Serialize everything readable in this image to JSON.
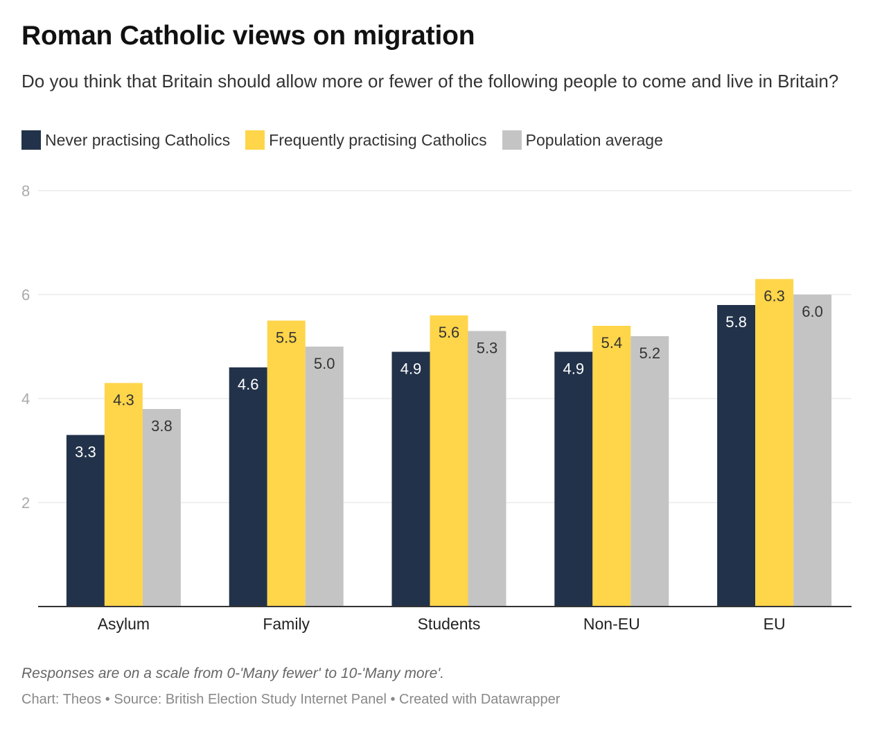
{
  "chart_data": {
    "type": "bar",
    "title": "Roman Catholic views on migration",
    "subtitle": "Do you think that Britain should allow more or fewer of the following people to come and live in Britain?",
    "categories": [
      "Asylum",
      "Family",
      "Students",
      "Non-EU",
      "EU"
    ],
    "series": [
      {
        "name": "Never practising Catholics",
        "color": "#22324a",
        "label_color": "#ffffff",
        "values": [
          3.3,
          4.6,
          4.9,
          4.9,
          5.8
        ],
        "labels": [
          "3.3",
          "4.6",
          "4.9",
          "4.9",
          "5.8"
        ]
      },
      {
        "name": "Frequently practising Catholics",
        "color": "#ffd54a",
        "label_color": "#333333",
        "values": [
          4.3,
          5.5,
          5.6,
          5.4,
          6.3
        ],
        "labels": [
          "4.3",
          "5.5",
          "5.6",
          "5.4",
          "6.3"
        ]
      },
      {
        "name": "Population average",
        "color": "#c4c4c4",
        "label_color": "#333333",
        "values": [
          3.8,
          5.0,
          5.3,
          5.2,
          6.0
        ],
        "labels": [
          "3.8",
          "5.0",
          "5.3",
          "5.2",
          "6.0"
        ]
      }
    ],
    "ylim": [
      0,
      8
    ],
    "yticks": [
      2,
      4,
      6,
      8
    ],
    "ytick_labels": [
      "2",
      "4",
      "6",
      "8"
    ],
    "grid": true,
    "xlabel": "",
    "ylabel": "",
    "legend_position": "top-left"
  },
  "notes": "Responses are on a scale from 0-'Many fewer' to 10-'Many more'.",
  "source": "Chart: Theos • Source: British Election Study Internet Panel • Created with Datawrapper"
}
